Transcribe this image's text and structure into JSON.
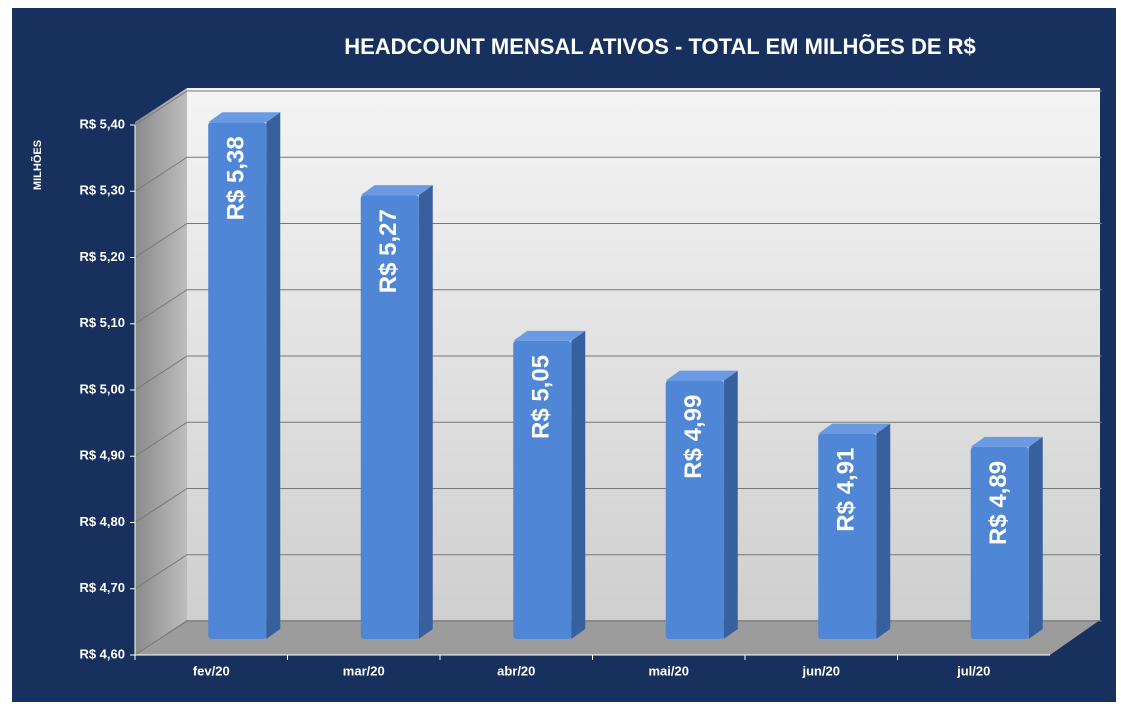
{
  "chart_data": {
    "type": "bar",
    "title": "HEADCOUNT MENSAL  ATIVOS - TOTAL EM MILHÕES DE R$",
    "y_axis_label": "MILHÕES",
    "categories": [
      "fev/20",
      "mar/20",
      "abr/20",
      "mai/20",
      "jun/20",
      "jul/20"
    ],
    "values": [
      5.38,
      5.27,
      5.05,
      4.99,
      4.91,
      4.89
    ],
    "value_labels": [
      "R$ 5,38",
      "R$ 5,27",
      "R$ 5,05",
      "R$ 4,99",
      "R$ 4,91",
      "R$ 4,89"
    ],
    "color": "#4f86d6",
    "ylim": [
      4.6,
      5.4
    ],
    "yticks": [
      {
        "value": 4.6,
        "label": "R$ 4,60"
      },
      {
        "value": 4.7,
        "label": "R$ 4,70"
      },
      {
        "value": 4.8,
        "label": "R$ 4,80"
      },
      {
        "value": 4.9,
        "label": "R$ 4,90"
      },
      {
        "value": 5.0,
        "label": "R$ 5,00"
      },
      {
        "value": 5.1,
        "label": "R$ 5,10"
      },
      {
        "value": 5.2,
        "label": "R$ 5,20"
      },
      {
        "value": 5.3,
        "label": "R$ 5,30"
      },
      {
        "value": 5.4,
        "label": "R$ 5,40"
      }
    ],
    "grid": true
  }
}
